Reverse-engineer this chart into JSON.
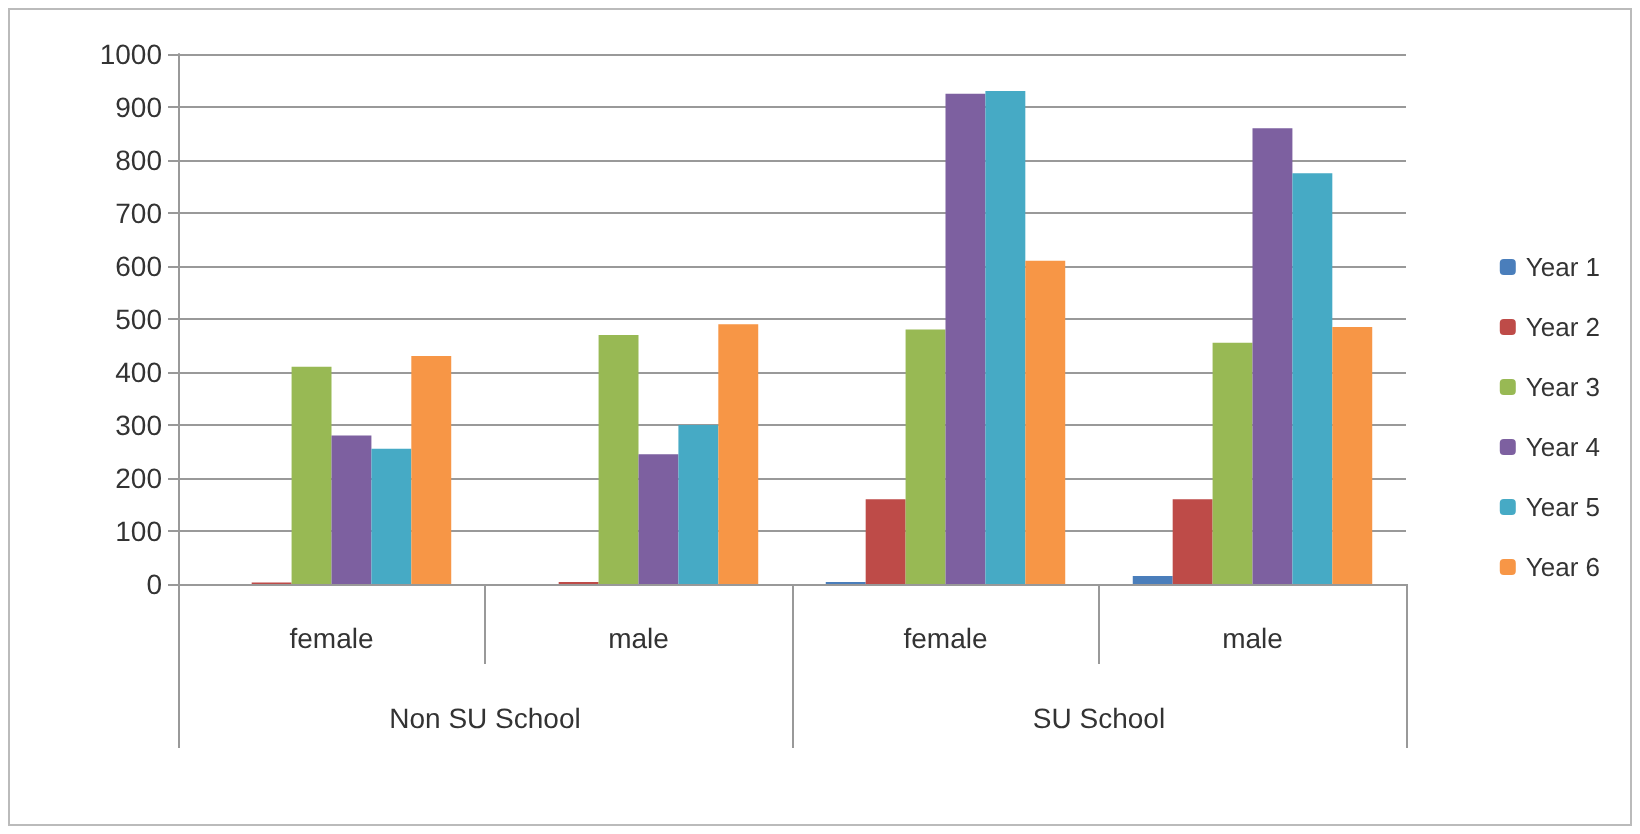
{
  "chart_data": {
    "type": "bar",
    "categories": [
      "female",
      "male",
      "female",
      "male"
    ],
    "annotations": [
      "Non SU School",
      "SU School"
    ],
    "series": [
      {
        "name": "Year 1",
        "color": "#4a7ebb",
        "values": [
          0,
          0,
          4,
          15
        ]
      },
      {
        "name": "Year 2",
        "color": "#be4b48",
        "values": [
          3,
          4,
          160,
          160
        ]
      },
      {
        "name": "Year 3",
        "color": "#98b954",
        "values": [
          410,
          470,
          480,
          455
        ]
      },
      {
        "name": "Year 4",
        "color": "#7d60a0",
        "values": [
          280,
          245,
          925,
          860
        ]
      },
      {
        "name": "Year 5",
        "color": "#46aac5",
        "values": [
          255,
          300,
          930,
          775
        ]
      },
      {
        "name": "Year 6",
        "color": "#f79646",
        "values": [
          430,
          490,
          610,
          485
        ]
      }
    ],
    "ylim": [
      0,
      1000
    ],
    "yticks": [
      0,
      100,
      200,
      300,
      400,
      500,
      600,
      700,
      800,
      900,
      1000
    ],
    "grid": "y",
    "legend": "right"
  }
}
